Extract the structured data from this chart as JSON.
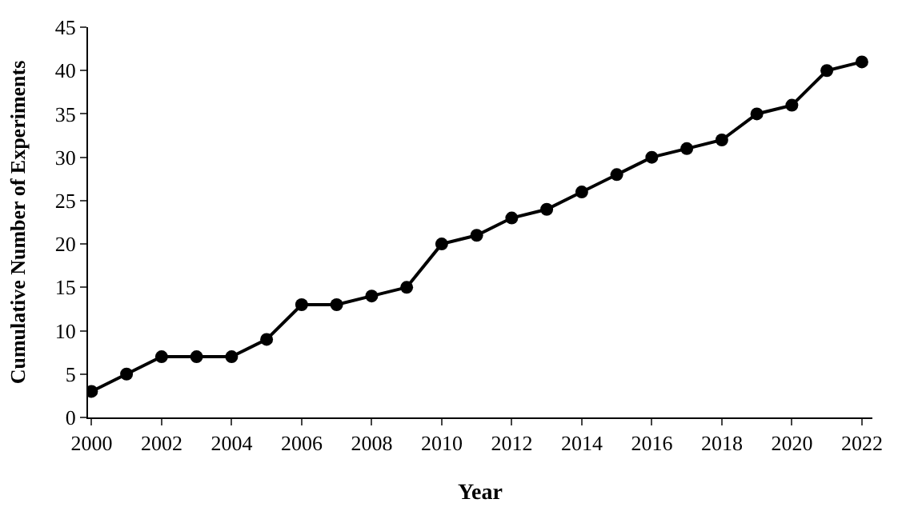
{
  "chart_data": {
    "type": "line",
    "xlabel": "Year",
    "ylabel": "Cumulative Number of Experiments",
    "x": [
      2000,
      2001,
      2002,
      2003,
      2004,
      2005,
      2006,
      2007,
      2008,
      2009,
      2010,
      2011,
      2012,
      2013,
      2014,
      2015,
      2016,
      2017,
      2018,
      2019,
      2020,
      2021,
      2022
    ],
    "series": [
      {
        "color": "#000000",
        "values": [
          3,
          5,
          7,
          7,
          7,
          9,
          13,
          13,
          14,
          15,
          20,
          21,
          23,
          24,
          26,
          28,
          30,
          31,
          32,
          35,
          36,
          40,
          41
        ]
      }
    ],
    "xlim": [
      1999.9,
      2022.3
    ],
    "xticks": [
      2000,
      2002,
      2004,
      2006,
      2008,
      2010,
      2012,
      2014,
      2016,
      2018,
      2020,
      2022
    ],
    "ylim": [
      0,
      45
    ],
    "yticks": [
      0,
      5,
      10,
      15,
      20,
      25,
      30,
      35,
      40,
      45
    ],
    "marker": "circle",
    "line_style": "solid"
  }
}
